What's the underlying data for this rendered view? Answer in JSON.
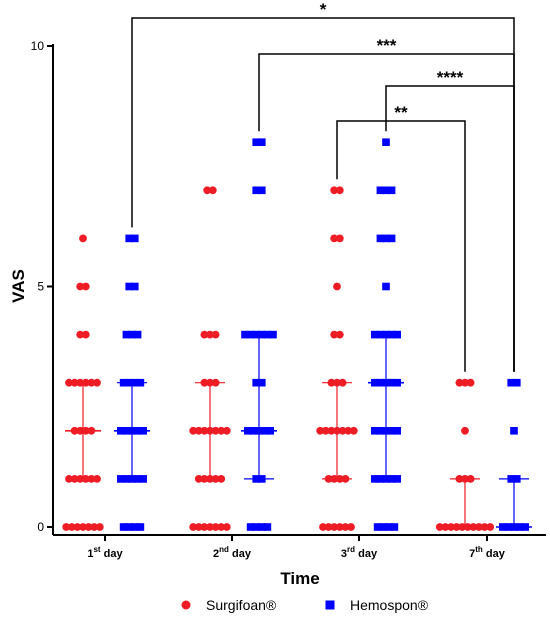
{
  "chart_data": {
    "type": "scatter",
    "xlabel": "Time",
    "ylabel": "VAS",
    "ylim": [
      0,
      10
    ],
    "yticks": [
      0,
      5,
      10
    ],
    "categories": [
      {
        "base": "1",
        "sup": "st",
        "rest": " day"
      },
      {
        "base": "2",
        "sup": "nd",
        "rest": " day"
      },
      {
        "base": "3",
        "sup": "rd",
        "rest": " day"
      },
      {
        "base": "7",
        "sup": "th",
        "rest": " day"
      }
    ],
    "series": [
      {
        "name": "Surgifoan®",
        "marker": "circle",
        "color": "#ee1c25",
        "points": [
          {
            "day": 0,
            "value": 6,
            "n": 1
          },
          {
            "day": 0,
            "value": 5,
            "n": 2
          },
          {
            "day": 0,
            "value": 4,
            "n": 2
          },
          {
            "day": 0,
            "value": 3,
            "n": 6
          },
          {
            "day": 0,
            "value": 2,
            "n": 4
          },
          {
            "day": 0,
            "value": 1,
            "n": 6
          },
          {
            "day": 0,
            "value": 0,
            "n": 7
          },
          {
            "day": 1,
            "value": 7,
            "n": 2
          },
          {
            "day": 1,
            "value": 4,
            "n": 3
          },
          {
            "day": 1,
            "value": 3,
            "n": 3
          },
          {
            "day": 1,
            "value": 2,
            "n": 7
          },
          {
            "day": 1,
            "value": 1,
            "n": 5
          },
          {
            "day": 1,
            "value": 0,
            "n": 7
          },
          {
            "day": 2,
            "value": 7,
            "n": 2
          },
          {
            "day": 2,
            "value": 6,
            "n": 2
          },
          {
            "day": 2,
            "value": 5,
            "n": 1
          },
          {
            "day": 2,
            "value": 4,
            "n": 2
          },
          {
            "day": 2,
            "value": 3,
            "n": 3
          },
          {
            "day": 2,
            "value": 2,
            "n": 7
          },
          {
            "day": 2,
            "value": 1,
            "n": 4
          },
          {
            "day": 2,
            "value": 0,
            "n": 6
          },
          {
            "day": 3,
            "value": 3,
            "n": 3
          },
          {
            "day": 3,
            "value": 2,
            "n": 1
          },
          {
            "day": 3,
            "value": 1,
            "n": 3
          },
          {
            "day": 3,
            "value": 0,
            "n": 10
          }
        ],
        "error_bars": [
          {
            "day": 0,
            "mean": 2,
            "low": 1,
            "high": 3
          },
          {
            "day": 1,
            "mean": 2,
            "low": 1,
            "high": 3
          },
          {
            "day": 2,
            "mean": 2,
            "low": 1,
            "high": 3
          },
          {
            "day": 3,
            "mean": 0,
            "low": 0,
            "high": 1
          }
        ]
      },
      {
        "name": "Hemospon®",
        "marker": "square",
        "color": "#0000ff",
        "points": [
          {
            "day": 0,
            "value": 6,
            "n": 2
          },
          {
            "day": 0,
            "value": 5,
            "n": 2
          },
          {
            "day": 0,
            "value": 4,
            "n": 3
          },
          {
            "day": 0,
            "value": 3,
            "n": 4
          },
          {
            "day": 0,
            "value": 2,
            "n": 5
          },
          {
            "day": 0,
            "value": 1,
            "n": 5
          },
          {
            "day": 0,
            "value": 0,
            "n": 4
          },
          {
            "day": 1,
            "value": 8,
            "n": 2
          },
          {
            "day": 1,
            "value": 7,
            "n": 2
          },
          {
            "day": 1,
            "value": 4,
            "n": 6
          },
          {
            "day": 1,
            "value": 3,
            "n": 2
          },
          {
            "day": 1,
            "value": 2,
            "n": 5
          },
          {
            "day": 1,
            "value": 1,
            "n": 2
          },
          {
            "day": 1,
            "value": 0,
            "n": 4
          },
          {
            "day": 2,
            "value": 8,
            "n": 1
          },
          {
            "day": 2,
            "value": 7,
            "n": 3
          },
          {
            "day": 2,
            "value": 6,
            "n": 3
          },
          {
            "day": 2,
            "value": 5,
            "n": 1
          },
          {
            "day": 2,
            "value": 4,
            "n": 5
          },
          {
            "day": 2,
            "value": 3,
            "n": 5
          },
          {
            "day": 2,
            "value": 2,
            "n": 5
          },
          {
            "day": 2,
            "value": 1,
            "n": 5
          },
          {
            "day": 2,
            "value": 0,
            "n": 4
          },
          {
            "day": 3,
            "value": 3,
            "n": 2
          },
          {
            "day": 3,
            "value": 2,
            "n": 1
          },
          {
            "day": 3,
            "value": 1,
            "n": 2
          },
          {
            "day": 3,
            "value": 0,
            "n": 5
          }
        ],
        "error_bars": [
          {
            "day": 0,
            "mean": 2,
            "low": 1,
            "high": 3
          },
          {
            "day": 1,
            "mean": 2,
            "low": 1,
            "high": 4
          },
          {
            "day": 2,
            "mean": 3,
            "low": 1,
            "high": 4
          },
          {
            "day": 3,
            "mean": 0,
            "low": 0,
            "high": 1
          }
        ]
      }
    ],
    "comparisons": [
      {
        "from_day": 0,
        "from_series": 1,
        "to_day": 3,
        "to_series": 1,
        "label": "*"
      },
      {
        "from_day": 1,
        "from_series": 1,
        "to_day": 3,
        "to_series": 1,
        "label": "***"
      },
      {
        "from_day": 2,
        "from_series": 1,
        "to_day": 3,
        "to_series": 1,
        "label": "****"
      },
      {
        "from_day": 2,
        "from_series": 0,
        "to_day": 3,
        "to_series": 0,
        "label": "**"
      }
    ],
    "legend": {
      "placement": "bottom"
    }
  }
}
